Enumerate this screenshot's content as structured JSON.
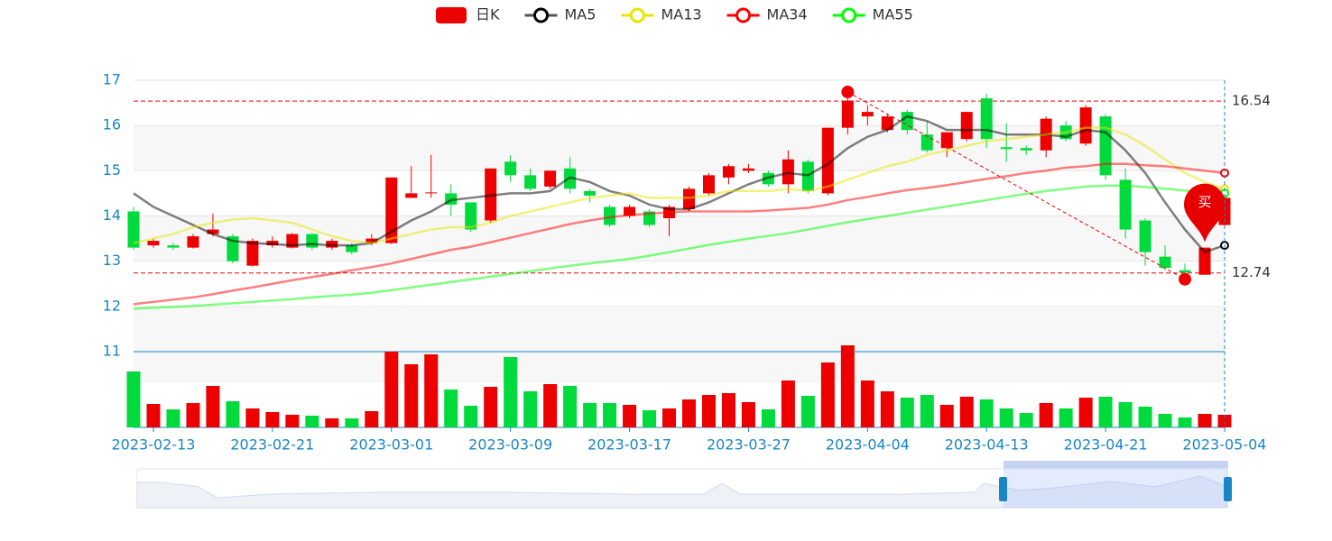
{
  "chart_data": {
    "type": "candlestick",
    "categories": [
      null,
      "2023-02-13",
      null,
      null,
      null,
      null,
      null,
      "2023-02-21",
      null,
      null,
      null,
      null,
      null,
      "2023-03-01",
      null,
      null,
      null,
      null,
      null,
      "2023-03-09",
      null,
      null,
      null,
      null,
      null,
      "2023-03-17",
      null,
      null,
      null,
      null,
      null,
      "2023-03-27",
      null,
      null,
      null,
      null,
      null,
      "2023-04-04",
      null,
      null,
      null,
      null,
      null,
      "2023-04-13",
      null,
      null,
      null,
      null,
      null,
      "2023-04-21",
      null,
      null,
      null,
      null,
      null,
      "2023-05-04"
    ],
    "ylim": [
      11,
      17
    ],
    "yticks": [
      11,
      12,
      13,
      14,
      15,
      16,
      17
    ],
    "up_color": "#ec0000",
    "down_color": "#00da3c",
    "candles": {
      "name": "日K",
      "color": "#ec0000",
      "values": [
        [
          14.1,
          13.3,
          13.25,
          14.2
        ],
        [
          13.35,
          13.45,
          13.3,
          13.5
        ],
        [
          13.35,
          13.3,
          13.25,
          13.4
        ],
        [
          13.3,
          13.55,
          13.28,
          13.6
        ],
        [
          13.6,
          13.7,
          13.55,
          14.05
        ],
        [
          13.55,
          13.0,
          12.95,
          13.6
        ],
        [
          12.9,
          13.45,
          12.88,
          13.5
        ],
        [
          13.35,
          13.45,
          13.3,
          13.55
        ],
        [
          13.3,
          13.6,
          13.28,
          13.62
        ],
        [
          13.6,
          13.3,
          13.25,
          13.62
        ],
        [
          13.3,
          13.45,
          13.25,
          13.5
        ],
        [
          13.35,
          13.2,
          13.15,
          13.4
        ],
        [
          13.4,
          13.5,
          13.35,
          13.6
        ],
        [
          13.4,
          14.85,
          13.38,
          14.85
        ],
        [
          14.4,
          14.5,
          14.4,
          15.1
        ],
        [
          14.5,
          14.52,
          14.4,
          15.35
        ],
        [
          14.5,
          14.25,
          14.0,
          14.7
        ],
        [
          14.3,
          13.7,
          13.65,
          14.3
        ],
        [
          13.9,
          15.05,
          13.85,
          15.05
        ],
        [
          15.2,
          14.9,
          14.75,
          15.35
        ],
        [
          14.9,
          14.6,
          14.55,
          15.05
        ],
        [
          14.65,
          15.0,
          14.6,
          15.0
        ],
        [
          15.05,
          14.6,
          14.5,
          15.3
        ],
        [
          14.55,
          14.45,
          14.3,
          14.6
        ],
        [
          14.2,
          13.8,
          13.75,
          14.25
        ],
        [
          14.0,
          14.2,
          13.95,
          14.25
        ],
        [
          14.1,
          13.8,
          13.75,
          14.15
        ],
        [
          13.95,
          14.2,
          13.55,
          14.25
        ],
        [
          14.15,
          14.6,
          14.1,
          14.65
        ],
        [
          14.5,
          14.9,
          14.45,
          14.95
        ],
        [
          14.85,
          15.1,
          14.7,
          15.15
        ],
        [
          15.0,
          15.05,
          14.95,
          15.15
        ],
        [
          14.95,
          14.7,
          14.65,
          15.0
        ],
        [
          14.7,
          15.25,
          14.5,
          15.45
        ],
        [
          15.2,
          14.55,
          14.5,
          15.25
        ],
        [
          14.5,
          15.95,
          14.45,
          15.95
        ],
        [
          15.95,
          16.55,
          15.8,
          16.74
        ],
        [
          16.2,
          16.3,
          16.0,
          16.45
        ],
        [
          15.9,
          16.2,
          15.85,
          16.25
        ],
        [
          16.3,
          15.9,
          15.8,
          16.35
        ],
        [
          15.8,
          15.45,
          15.4,
          16.1
        ],
        [
          15.5,
          15.85,
          15.3,
          15.85
        ],
        [
          15.7,
          16.3,
          15.65,
          16.3
        ],
        [
          16.6,
          15.7,
          15.5,
          16.7
        ],
        [
          15.52,
          15.48,
          15.2,
          16.05
        ],
        [
          15.5,
          15.45,
          15.35,
          15.55
        ],
        [
          15.45,
          16.15,
          15.3,
          16.2
        ],
        [
          16.0,
          15.7,
          15.65,
          16.1
        ],
        [
          15.6,
          16.4,
          15.55,
          16.45
        ],
        [
          16.2,
          14.9,
          14.8,
          16.25
        ],
        [
          14.8,
          13.7,
          13.5,
          15.05
        ],
        [
          13.9,
          13.2,
          12.9,
          13.95
        ],
        [
          13.1,
          12.85,
          12.8,
          13.35
        ],
        [
          12.8,
          12.75,
          12.6,
          12.95
        ],
        [
          12.7,
          13.3,
          12.7,
          13.3
        ],
        [
          13.8,
          14.4,
          13.75,
          14.4
        ]
      ]
    },
    "volume": [
      62,
      26,
      20,
      27,
      46,
      29,
      21,
      17,
      14,
      13,
      10,
      10,
      18,
      84,
      70,
      81,
      42,
      24,
      45,
      78,
      40,
      48,
      46,
      27,
      27,
      25,
      19,
      21,
      31,
      36,
      38,
      28,
      20,
      52,
      35,
      72,
      91,
      52,
      40,
      33,
      36,
      25,
      34,
      31,
      21,
      16,
      27,
      21,
      33,
      34,
      28,
      23,
      15,
      11,
      15,
      14
    ],
    "series": [
      {
        "name": "MA5",
        "color": "#000000",
        "values": [
          14.5,
          14.2,
          14.0,
          13.8,
          13.6,
          13.45,
          13.4,
          13.38,
          13.35,
          13.38,
          13.35,
          13.35,
          13.4,
          13.65,
          13.9,
          14.1,
          14.35,
          14.4,
          14.45,
          14.5,
          14.5,
          14.55,
          14.85,
          14.75,
          14.55,
          14.45,
          14.25,
          14.15,
          14.15,
          14.3,
          14.5,
          14.7,
          14.85,
          14.95,
          14.9,
          15.15,
          15.5,
          15.75,
          15.9,
          16.2,
          16.1,
          15.9,
          15.9,
          15.9,
          15.8,
          15.8,
          15.8,
          15.75,
          15.9,
          15.85,
          15.45,
          14.95,
          14.3,
          13.7,
          13.2,
          13.35
        ]
      },
      {
        "name": "MA13",
        "color": "#e6e600",
        "values": [
          13.4,
          13.5,
          13.6,
          13.75,
          13.85,
          13.92,
          13.95,
          13.9,
          13.85,
          13.7,
          13.55,
          13.45,
          13.4,
          13.5,
          13.6,
          13.7,
          13.75,
          13.75,
          13.85,
          14.0,
          14.1,
          14.2,
          14.3,
          14.4,
          14.45,
          14.5,
          14.4,
          14.4,
          14.4,
          14.45,
          14.55,
          14.55,
          14.55,
          14.6,
          14.55,
          14.65,
          14.8,
          14.95,
          15.1,
          15.2,
          15.35,
          15.45,
          15.55,
          15.65,
          15.7,
          15.75,
          15.8,
          15.85,
          15.95,
          15.95,
          15.8,
          15.55,
          15.25,
          14.95,
          14.75,
          14.6
        ]
      },
      {
        "name": "MA34",
        "color": "#ff0000",
        "values": [
          12.05,
          12.1,
          12.15,
          12.2,
          12.27,
          12.35,
          12.42,
          12.5,
          12.58,
          12.65,
          12.72,
          12.8,
          12.87,
          12.95,
          13.05,
          13.15,
          13.25,
          13.32,
          13.42,
          13.52,
          13.62,
          13.72,
          13.82,
          13.9,
          13.97,
          14.02,
          14.05,
          14.08,
          14.1,
          14.1,
          14.1,
          14.1,
          14.12,
          14.15,
          14.18,
          14.25,
          14.35,
          14.42,
          14.5,
          14.57,
          14.62,
          14.68,
          14.75,
          14.82,
          14.88,
          14.95,
          15.0,
          15.07,
          15.1,
          15.15,
          15.15,
          15.12,
          15.1,
          15.05,
          15.0,
          14.95
        ]
      },
      {
        "name": "MA55",
        "color": "#00ff00",
        "values": [
          11.95,
          11.97,
          11.99,
          12.01,
          12.04,
          12.07,
          12.1,
          12.13,
          12.16,
          12.2,
          12.23,
          12.26,
          12.3,
          12.36,
          12.42,
          12.48,
          12.54,
          12.6,
          12.66,
          12.72,
          12.78,
          12.84,
          12.9,
          12.95,
          13.0,
          13.05,
          13.12,
          13.2,
          13.28,
          13.36,
          13.43,
          13.5,
          13.56,
          13.62,
          13.7,
          13.78,
          13.86,
          13.93,
          14.0,
          14.07,
          14.14,
          14.21,
          14.28,
          14.35,
          14.42,
          14.49,
          14.55,
          14.6,
          14.65,
          14.67,
          14.67,
          14.64,
          14.6,
          14.56,
          14.52,
          14.5
        ]
      }
    ],
    "mark_lines": [
      16.54,
      12.74
    ],
    "buy_marker": {
      "label": "买",
      "index": 54,
      "value": 13.3
    }
  }
}
